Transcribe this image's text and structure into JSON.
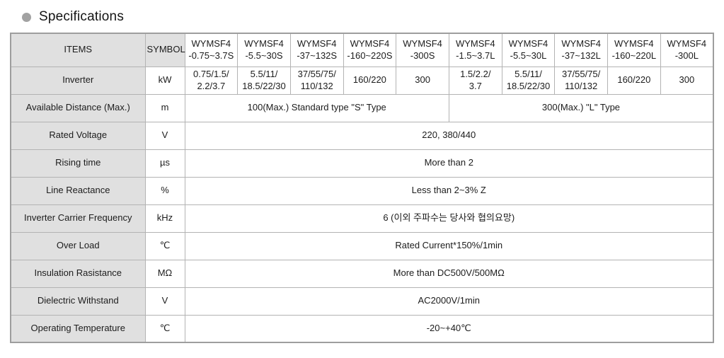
{
  "title": {
    "text": "Specifications",
    "bullet_color": "#a2a2a2"
  },
  "colors": {
    "header_bg": "#e0e0e0",
    "grid_border": "#b3b3b3",
    "outer_border": "#9e9e9e",
    "text": "#1c1c1c"
  },
  "table": {
    "header": {
      "items_label": "ITEMS",
      "symbol_label": "SYMBOL",
      "models": [
        "WYMSF4\n-0.75~3.7S",
        "WYMSF4\n-5.5~30S",
        "WYMSF4\n-37~132S",
        "WYMSF4\n-160~220S",
        "WYMSF4\n-300S",
        "WYMSF4\n-1.5~3.7L",
        "WYMSF4\n-5.5~30L",
        "WYMSF4\n-37~132L",
        "WYMSF4\n-160~220L",
        "WYMSF4\n-300L"
      ]
    },
    "rows": [
      {
        "item": "Inverter",
        "symbol": "kW",
        "cells": [
          {
            "text": "0.75/1.5/\n2.2/3.7"
          },
          {
            "text": "5.5/11/\n18.5/22/30"
          },
          {
            "text": "37/55/75/\n110/132"
          },
          {
            "text": "160/220"
          },
          {
            "text": "300"
          },
          {
            "text": "1.5/2.2/\n3.7"
          },
          {
            "text": "5.5/11/\n18.5/22/30"
          },
          {
            "text": "37/55/75/\n110/132"
          },
          {
            "text": "160/220"
          },
          {
            "text": "300"
          }
        ]
      },
      {
        "item": "Available Distance (Max.)",
        "symbol": "m",
        "cells": [
          {
            "text": "100(Max.) Standard  type  \"S\" Type"
          },
          {
            "text": "300(Max.)  \"L\" Type"
          }
        ]
      },
      {
        "item": "Rated Voltage",
        "symbol": "V",
        "cells": [
          {
            "text": "220, 380/440"
          }
        ]
      },
      {
        "item": "Rising time",
        "symbol": "µs",
        "cells": [
          {
            "text": "More than 2"
          }
        ]
      },
      {
        "item": "Line Reactance",
        "symbol": "%",
        "cells": [
          {
            "text": "Less than 2~3% Z"
          }
        ]
      },
      {
        "item": "Inverter Carrier Frequency",
        "symbol": "kHz",
        "cells": [
          {
            "text": "6 (이외 주파수는 당사와 협의요망)"
          }
        ]
      },
      {
        "item": "Over Load",
        "symbol": "℃",
        "cells": [
          {
            "text": "Rated Current*150%/1min"
          }
        ]
      },
      {
        "item": "Insulation Rasistance",
        "symbol": "MΩ",
        "cells": [
          {
            "text": "More than DC500V/500MΩ"
          }
        ]
      },
      {
        "item": "Dielectric Withstand",
        "symbol": "V",
        "cells": [
          {
            "text": "AC2000V/1min"
          }
        ]
      },
      {
        "item": "Operating Temperature",
        "symbol": "℃",
        "cells": [
          {
            "text": "-20~+40℃"
          }
        ]
      }
    ]
  }
}
